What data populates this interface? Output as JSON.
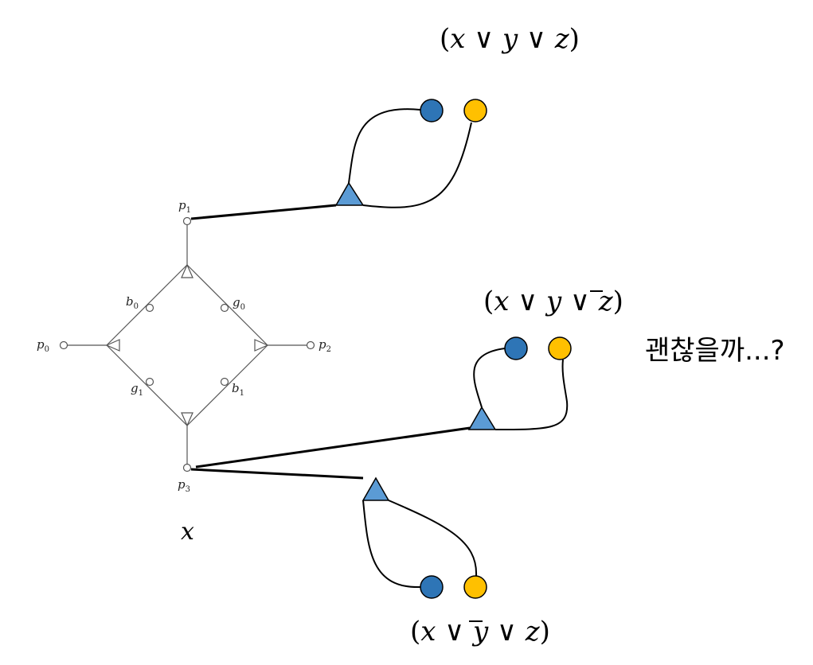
{
  "gadget": {
    "nodes": {
      "p0": {
        "base": "p",
        "sub": "0"
      },
      "p1": {
        "base": "p",
        "sub": "1"
      },
      "p2": {
        "base": "p",
        "sub": "2"
      },
      "p3": {
        "base": "p",
        "sub": "3"
      },
      "b0": {
        "base": "b",
        "sub": "0"
      },
      "b1": {
        "base": "b",
        "sub": "1"
      },
      "g0": {
        "base": "g",
        "sub": "0"
      },
      "g1": {
        "base": "g",
        "sub": "1"
      }
    },
    "variable_label": "x"
  },
  "clauses": [
    {
      "parts": [
        "(",
        "x",
        " ∨ ",
        "y",
        " ∨ ",
        "z",
        ")"
      ],
      "negated": [
        false,
        false,
        false
      ]
    },
    {
      "parts": [
        "(",
        "x",
        " ∨ ",
        "y",
        " ∨ ",
        "z",
        ")"
      ],
      "negated": [
        false,
        false,
        true
      ]
    },
    {
      "parts": [
        "(",
        "x",
        " ∨ ",
        "y",
        " ∨ ",
        "z",
        ")"
      ],
      "negated": [
        false,
        true,
        false
      ]
    }
  ],
  "annotation": "괜찮을까...?",
  "colors": {
    "triangle_fill": "#5b9bd5",
    "blue_circle": "#2e75b6",
    "yellow_circle": "#ffc000",
    "stroke": "#000000",
    "gadget_stroke": "#555555"
  }
}
